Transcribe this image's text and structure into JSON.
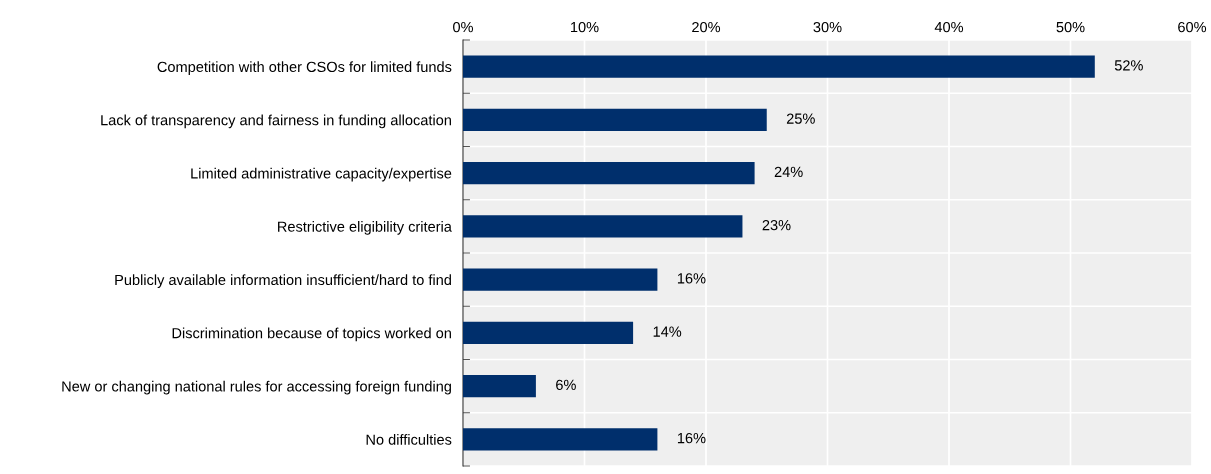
{
  "chart_data": {
    "type": "bar",
    "orientation": "horizontal",
    "categories": [
      "Competition with other CSOs for limited funds",
      "Lack of transparency and fairness in funding allocation",
      "Limited administrative capacity/expertise",
      "Restrictive eligibility criteria",
      "Publicly available information insufficient/hard to find",
      "Discrimination because of topics worked on",
      "New or changing national rules for accessing foreign funding",
      "No difficulties"
    ],
    "values": [
      52,
      25,
      24,
      23,
      16,
      14,
      6,
      16
    ],
    "value_labels": [
      "52%",
      "25%",
      "24%",
      "23%",
      "16%",
      "14%",
      "6%",
      "16%"
    ],
    "color": "#002f6c",
    "xlim": [
      0,
      60
    ],
    "xticks": [
      {
        "value": 0,
        "label": "0%"
      },
      {
        "value": 10,
        "label": "10%"
      },
      {
        "value": 20,
        "label": "20%"
      },
      {
        "value": 30,
        "label": "30%"
      },
      {
        "value": 40,
        "label": "40%"
      },
      {
        "value": 50,
        "label": "50%"
      },
      {
        "value": 60,
        "label": "60%"
      }
    ],
    "grid": true,
    "legend": false
  }
}
